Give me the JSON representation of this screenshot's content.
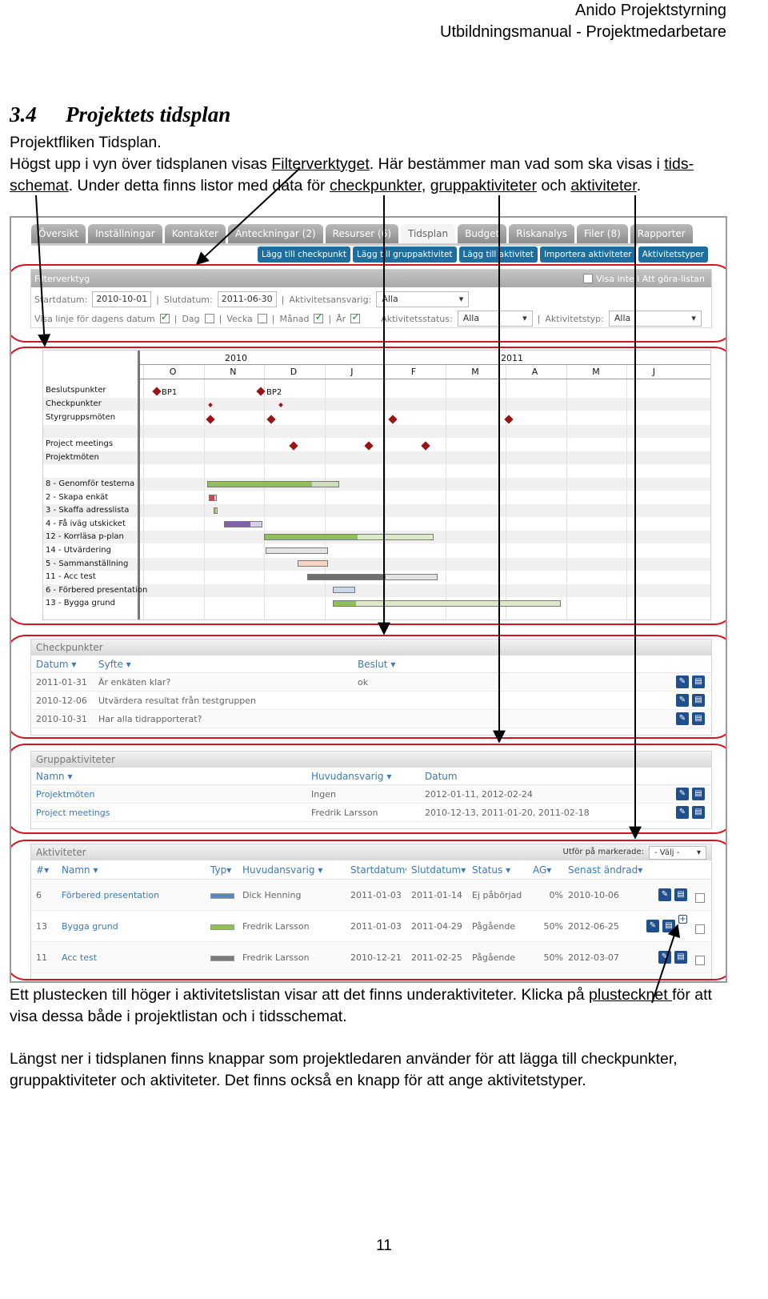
{
  "header": {
    "line1": "Anido Projektstyrning",
    "line2": "Utbildningsmanual - Projektmedarbetare"
  },
  "section": {
    "number": "3.4",
    "title": "Projektets tidsplan"
  },
  "intro": {
    "line1": "Projektfliken Tidsplan.",
    "line2a": "Högst upp i vyn över tidsplanen visas ",
    "link_filter": "Filterverktyget",
    "line2b": ". Här bestämmer man vad som ska visas i ",
    "link_tids": "tids-",
    "link_schemat": "schemat",
    "line3a": ". Under detta finns listor med data för ",
    "link_check": "checkpunkter",
    "comma": ", ",
    "link_grupp": "gruppaktiviteter",
    "och": " och ",
    "link_akt": "aktiviteter",
    "dot": "."
  },
  "screenshot": {
    "tabs": [
      "Översikt",
      "Inställningar",
      "Kontakter",
      "Anteckningar (2)",
      "Resurser (6)",
      "Tidsplan",
      "Budget",
      "Riskanalys",
      "Filer (8)",
      "Rapporter"
    ],
    "actions": [
      "Lägg till checkpunkt",
      "Lägg till gruppaktivitet",
      "Lägg till aktivitet",
      "Importera aktiviteter",
      "Aktivitetstyper"
    ],
    "filter": {
      "title": "Filterverktyg",
      "visa_ej": "Visa inte i Att göra-listan",
      "startdatum_label": "Startdatum:",
      "startdatum": "2010-10-01",
      "slutdatum_label": "Slutdatum:",
      "slutdatum": "2011-06-30",
      "ansvarig_label": "Aktivitetsansvarig:",
      "ansvarig": "Alla",
      "visa_linje": "Visa linje för dagens datum",
      "dag": "Dag",
      "vecka": "Vecka",
      "manad": "Månad",
      "ar": "År",
      "status_label": "Aktivitetsstatus:",
      "status": "Alla",
      "typ_label": "Aktivitetstyp:",
      "typ": "Alla"
    },
    "gantt": {
      "years": [
        "2010",
        "2011"
      ],
      "months": [
        "O",
        "N",
        "D",
        "J",
        "F",
        "M",
        "A",
        "M",
        "J"
      ],
      "milestone_labels": [
        "BP1",
        "BP2"
      ],
      "rows": [
        "Beslutspunkter",
        "Checkpunkter",
        "Styrgruppsmöten",
        "",
        "Project meetings",
        "Projektmöten",
        "",
        "8 - Genomför testerna",
        "2 - Skapa enkät",
        "3 - Skaffa adresslista",
        "4 - Få iväg utskicket",
        "12 - Korrläsa p-plan",
        "14 - Utvärdering",
        "5 - Sammanställning",
        "11 - Acc test",
        "6 - Förbered presentation",
        "13 - Bygga grund"
      ]
    },
    "checkpunkter": {
      "title": "Checkpunkter",
      "cols": [
        "Datum",
        "Syfte",
        "Beslut"
      ],
      "rows": [
        [
          "2011-01-31",
          "Är enkäten klar?",
          "ok"
        ],
        [
          "2010-12-06",
          "Utvärdera resultat från testgruppen",
          ""
        ],
        [
          "2010-10-31",
          "Har alla tidrapporterat?",
          ""
        ]
      ]
    },
    "gruppaktiviteter": {
      "title": "Gruppaktiviteter",
      "cols": [
        "Namn",
        "Huvudansvarig",
        "Datum"
      ],
      "rows": [
        [
          "Projektmöten",
          "Ingen",
          "2012-01-11, 2012-02-24"
        ],
        [
          "Project meetings",
          "Fredrik Larsson",
          "2010-12-13, 2011-01-20, 2011-02-18"
        ]
      ]
    },
    "aktiviteter": {
      "title": "Aktiviteter",
      "utfor_label": "Utför på markerade:",
      "utfor_value": "- Välj -",
      "cols": [
        "#",
        "Namn",
        "Typ",
        "Huvudansvarig",
        "Startdatum",
        "Slutdatum",
        "Status",
        "AG",
        "Senast ändrad"
      ],
      "rows": [
        [
          "6",
          "Förbered presentation",
          "",
          "Dick Henning",
          "2011-01-03",
          "2011-01-14",
          "Ej påbörjad",
          "0%",
          "2010-10-06"
        ],
        [
          "13",
          "Bygga grund",
          "",
          "Fredrik Larsson",
          "2011-01-03",
          "2011-04-29",
          "Pågående",
          "50%",
          "2012-06-25"
        ],
        [
          "11",
          "Acc test",
          "",
          "Fredrik Larsson",
          "2010-12-21",
          "2011-02-25",
          "Pågående",
          "50%",
          "2012-03-07"
        ]
      ],
      "type_colors": [
        "#5a86c6",
        "#8fbf5a",
        "#7a7a7a"
      ]
    }
  },
  "para2": {
    "a": "Ett plustecken till höger i aktivitetslistan visar att det finns underaktiviteter. Klicka på ",
    "link": "plustecknet ",
    "b": "för att visa dessa både i projektlistan och i tidsschemat."
  },
  "para3": "Längst ner i tidsplanen finns knappar som projektledaren använder för att lägga till checkpunkter, gruppaktiviteter och aktiviteter. Det finns också en knapp för att ange aktivitetstyper.",
  "page_number": "11",
  "colors": {
    "highlight": "#d8151f",
    "accent": "#1d6e9e",
    "link_blue": "#3d7ab4"
  }
}
